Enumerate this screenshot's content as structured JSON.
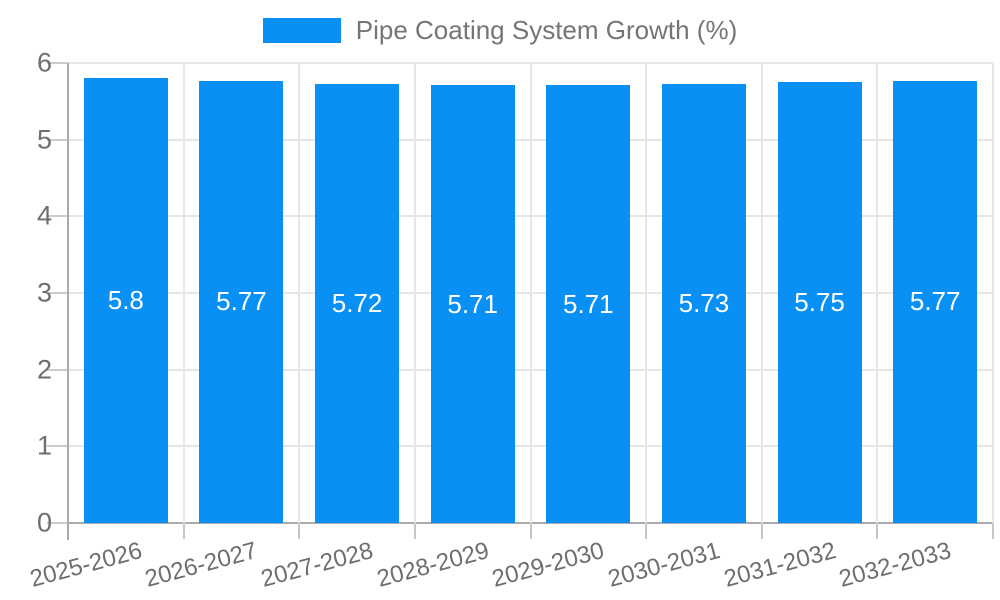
{
  "legend": {
    "label": "Pipe Coating System Growth (%)"
  },
  "colors": {
    "bar": "#0990f5",
    "bar_label": "#ffffff",
    "legend_text": "#757575",
    "axis_text": "#6e6e6e",
    "gridline": "#e6e6e6",
    "axis_line": "#ababab"
  },
  "chart_data": {
    "type": "bar",
    "title": "Pipe Coating System Growth (%)",
    "categories": [
      "2025-2026",
      "2026-2027",
      "2027-2028",
      "2028-2029",
      "2029-2030",
      "2030-2031",
      "2031-2032",
      "2032-2033"
    ],
    "values": [
      5.8,
      5.77,
      5.72,
      5.71,
      5.71,
      5.73,
      5.75,
      5.77
    ],
    "data_labels": [
      "5.8",
      "5.77",
      "5.72",
      "5.71",
      "5.71",
      "5.73",
      "5.75",
      "5.77"
    ],
    "xlabel": "",
    "ylabel": "",
    "ylim": [
      0,
      6
    ],
    "yticks": [
      0,
      1,
      2,
      3,
      4,
      5,
      6
    ],
    "grid": true,
    "legend_position": "top",
    "bar_color": "#0990f5",
    "data_label_position": "center"
  }
}
